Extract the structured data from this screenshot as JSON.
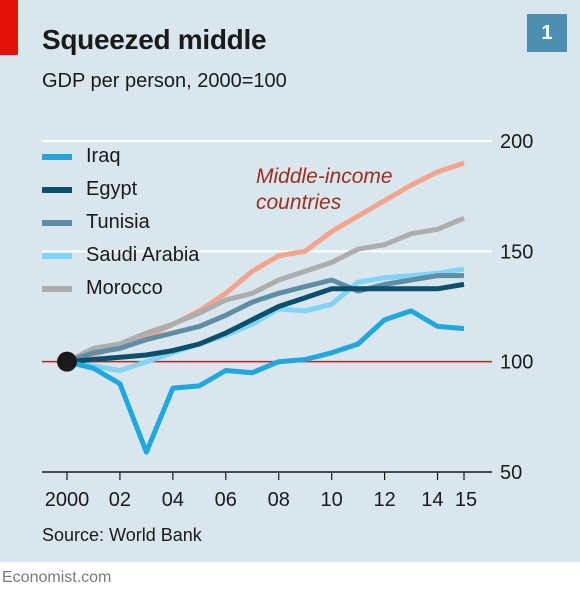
{
  "header": {
    "title": "Squeezed middle",
    "subtitle": "GDP per person, 2000=100",
    "number": "1"
  },
  "source": "Source: World Bank",
  "footer": "Economist.com",
  "colors": {
    "panel_bg": "#d9e6ee",
    "accent_red": "#e3120b",
    "number_bg": "#4d8fb0"
  },
  "chart_data": {
    "type": "line",
    "title": "Squeezed middle",
    "subtitle": "GDP per person, 2000=100",
    "x": [
      2000,
      2001,
      2002,
      2003,
      2004,
      2005,
      2006,
      2007,
      2008,
      2009,
      2010,
      2011,
      2012,
      2013,
      2014,
      2015
    ],
    "x_ticks": [
      2000,
      2002,
      2004,
      2006,
      2008,
      2010,
      2012,
      2014,
      2015
    ],
    "x_tick_labels": [
      "2000",
      "02",
      "04",
      "06",
      "08",
      "10",
      "12",
      "14",
      "15"
    ],
    "ylim": [
      50,
      200
    ],
    "y_ticks": [
      50,
      100,
      150,
      200
    ],
    "y_tick_labels": [
      "50",
      "100",
      "150",
      "200"
    ],
    "reference_line": {
      "value": 100,
      "color": "#e3120b"
    },
    "start_marker": {
      "x": 2000,
      "y": 100
    },
    "grid": "horizontal",
    "legend_position": "top-left",
    "series": [
      {
        "name": "Middle-income countries",
        "color": "#f2a58c",
        "values": [
          100,
          103,
          107,
          111,
          117,
          123,
          131,
          141,
          148,
          150,
          159,
          166,
          173,
          180,
          186,
          190
        ]
      },
      {
        "name": "Morocco",
        "color": "#adadad",
        "values": [
          100,
          106,
          108,
          113,
          117,
          122,
          128,
          131,
          137,
          141,
          145,
          151,
          153,
          158,
          160,
          165
        ]
      },
      {
        "name": "Saudi Arabia",
        "color": "#80d4f5",
        "values": [
          100,
          98,
          96,
          100,
          104,
          108,
          112,
          117,
          124,
          123,
          126,
          136,
          138,
          139,
          140,
          142
        ]
      },
      {
        "name": "Tunisia",
        "color": "#5d8ea5",
        "values": [
          100,
          104,
          106,
          110,
          113,
          116,
          121,
          127,
          131,
          134,
          137,
          132,
          135,
          137,
          139,
          139
        ]
      },
      {
        "name": "Egypt",
        "color": "#0b4f6c",
        "values": [
          100,
          101,
          102,
          103,
          105,
          108,
          113,
          119,
          125,
          129,
          133,
          133,
          133,
          133,
          133,
          135
        ]
      },
      {
        "name": "Iraq",
        "color": "#1fa8e0",
        "values": [
          100,
          97,
          90,
          59,
          88,
          89,
          96,
          95,
          100,
          101,
          104,
          108,
          119,
          123,
          116,
          115
        ]
      }
    ],
    "annotation": {
      "text_lines": [
        "Middle-income",
        "countries"
      ],
      "color": "#9b2f1d"
    }
  },
  "legend": [
    {
      "label": "Iraq",
      "color": "#1fa8e0"
    },
    {
      "label": "Egypt",
      "color": "#0b4f6c"
    },
    {
      "label": "Tunisia",
      "color": "#5d8ea5"
    },
    {
      "label": "Saudi Arabia",
      "color": "#80d4f5"
    },
    {
      "label": "Morocco",
      "color": "#adadad"
    }
  ]
}
